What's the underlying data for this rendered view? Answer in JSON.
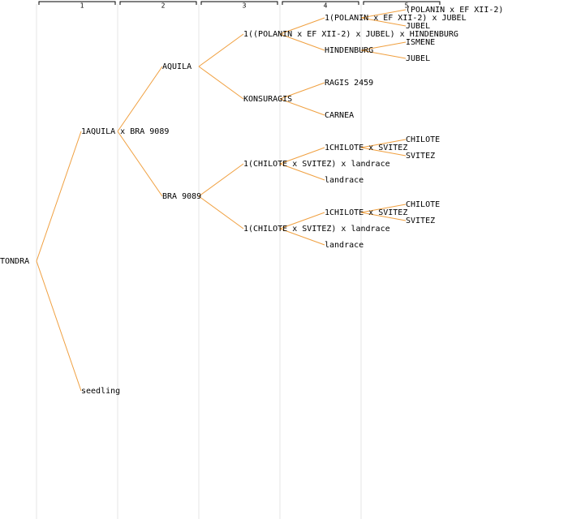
{
  "columns": [
    "1",
    "2",
    "3",
    "4",
    "5"
  ],
  "tree": {
    "label": "TONDRA",
    "children": [
      {
        "label": "1AQUILA x BRA 9089",
        "children": [
          {
            "label": "AQUILA",
            "children": [
              {
                "label": "1((POLANIN x EF XII-2) x JUBEL) x HINDENBURG",
                "children": [
                  {
                    "label": "1(POLANIN x EF XII-2) x JUBEL",
                    "children": [
                      {
                        "label": "(POLANIN x EF XII-2)"
                      },
                      {
                        "label": "JUBEL"
                      }
                    ]
                  },
                  {
                    "label": "HINDENBURG",
                    "children": [
                      {
                        "label": "ISMENE"
                      },
                      {
                        "label": "JUBEL"
                      }
                    ]
                  }
                ]
              },
              {
                "label": "KONSURAGIS",
                "children": [
                  {
                    "label": "RAGIS 2459"
                  },
                  {
                    "label": "CARNEA"
                  }
                ]
              }
            ]
          },
          {
            "label": "BRA 9089",
            "children": [
              {
                "label": "1(CHILOTE x SVITEZ) x landrace",
                "children": [
                  {
                    "label": "1CHILOTE x SVITEZ",
                    "children": [
                      {
                        "label": "CHILOTE"
                      },
                      {
                        "label": "SVITEZ"
                      }
                    ]
                  },
                  {
                    "label": "landrace"
                  }
                ]
              },
              {
                "label": "1(CHILOTE x SVITEZ) x landrace",
                "children": [
                  {
                    "label": "1CHILOTE x SVITEZ",
                    "children": [
                      {
                        "label": "CHILOTE"
                      },
                      {
                        "label": "SVITEZ"
                      }
                    ]
                  },
                  {
                    "label": "landrace"
                  }
                ]
              }
            ]
          }
        ]
      },
      {
        "label": "seedling"
      }
    ]
  }
}
